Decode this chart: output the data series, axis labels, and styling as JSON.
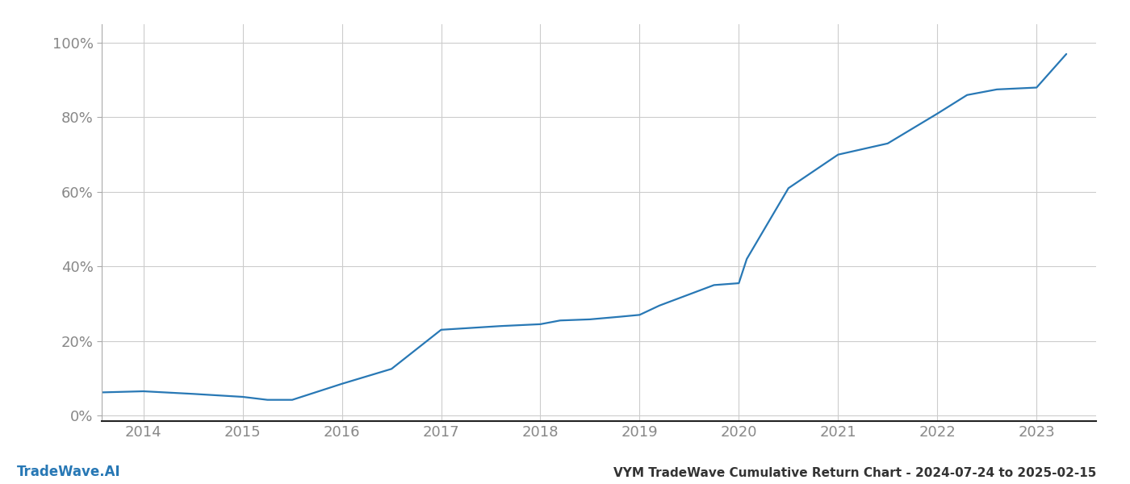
{
  "title": "VYM TradeWave Cumulative Return Chart - 2024-07-24 to 2025-02-15",
  "watermark": "TradeWave.AI",
  "line_color": "#2878b5",
  "background_color": "#ffffff",
  "grid_color": "#cccccc",
  "x_values": [
    2013.58,
    2014.0,
    2014.5,
    2015.0,
    2015.25,
    2015.5,
    2016.0,
    2016.5,
    2017.0,
    2017.3,
    2017.6,
    2018.0,
    2018.2,
    2018.5,
    2018.8,
    2019.0,
    2019.2,
    2019.5,
    2019.75,
    2020.0,
    2020.08,
    2020.5,
    2021.0,
    2021.5,
    2022.0,
    2022.3,
    2022.6,
    2023.0,
    2023.3
  ],
  "y_values": [
    0.062,
    0.065,
    0.058,
    0.05,
    0.042,
    0.042,
    0.085,
    0.125,
    0.23,
    0.235,
    0.24,
    0.245,
    0.255,
    0.258,
    0.265,
    0.27,
    0.295,
    0.325,
    0.35,
    0.355,
    0.42,
    0.61,
    0.7,
    0.73,
    0.81,
    0.86,
    0.875,
    0.88,
    0.97
  ],
  "xlim": [
    2013.58,
    2023.6
  ],
  "ylim": [
    -0.015,
    1.05
  ],
  "xticks": [
    2014,
    2015,
    2016,
    2017,
    2018,
    2019,
    2020,
    2021,
    2022,
    2023
  ],
  "yticks": [
    0.0,
    0.2,
    0.4,
    0.6,
    0.8,
    1.0
  ],
  "ytick_labels": [
    "0%",
    "20%",
    "40%",
    "60%",
    "80%",
    "100%"
  ],
  "line_width": 1.6,
  "tick_color": "#888888",
  "spine_color": "#aaaaaa",
  "bottom_spine_color": "#222222",
  "tick_fontsize": 13,
  "title_fontsize": 11,
  "watermark_fontsize": 12
}
